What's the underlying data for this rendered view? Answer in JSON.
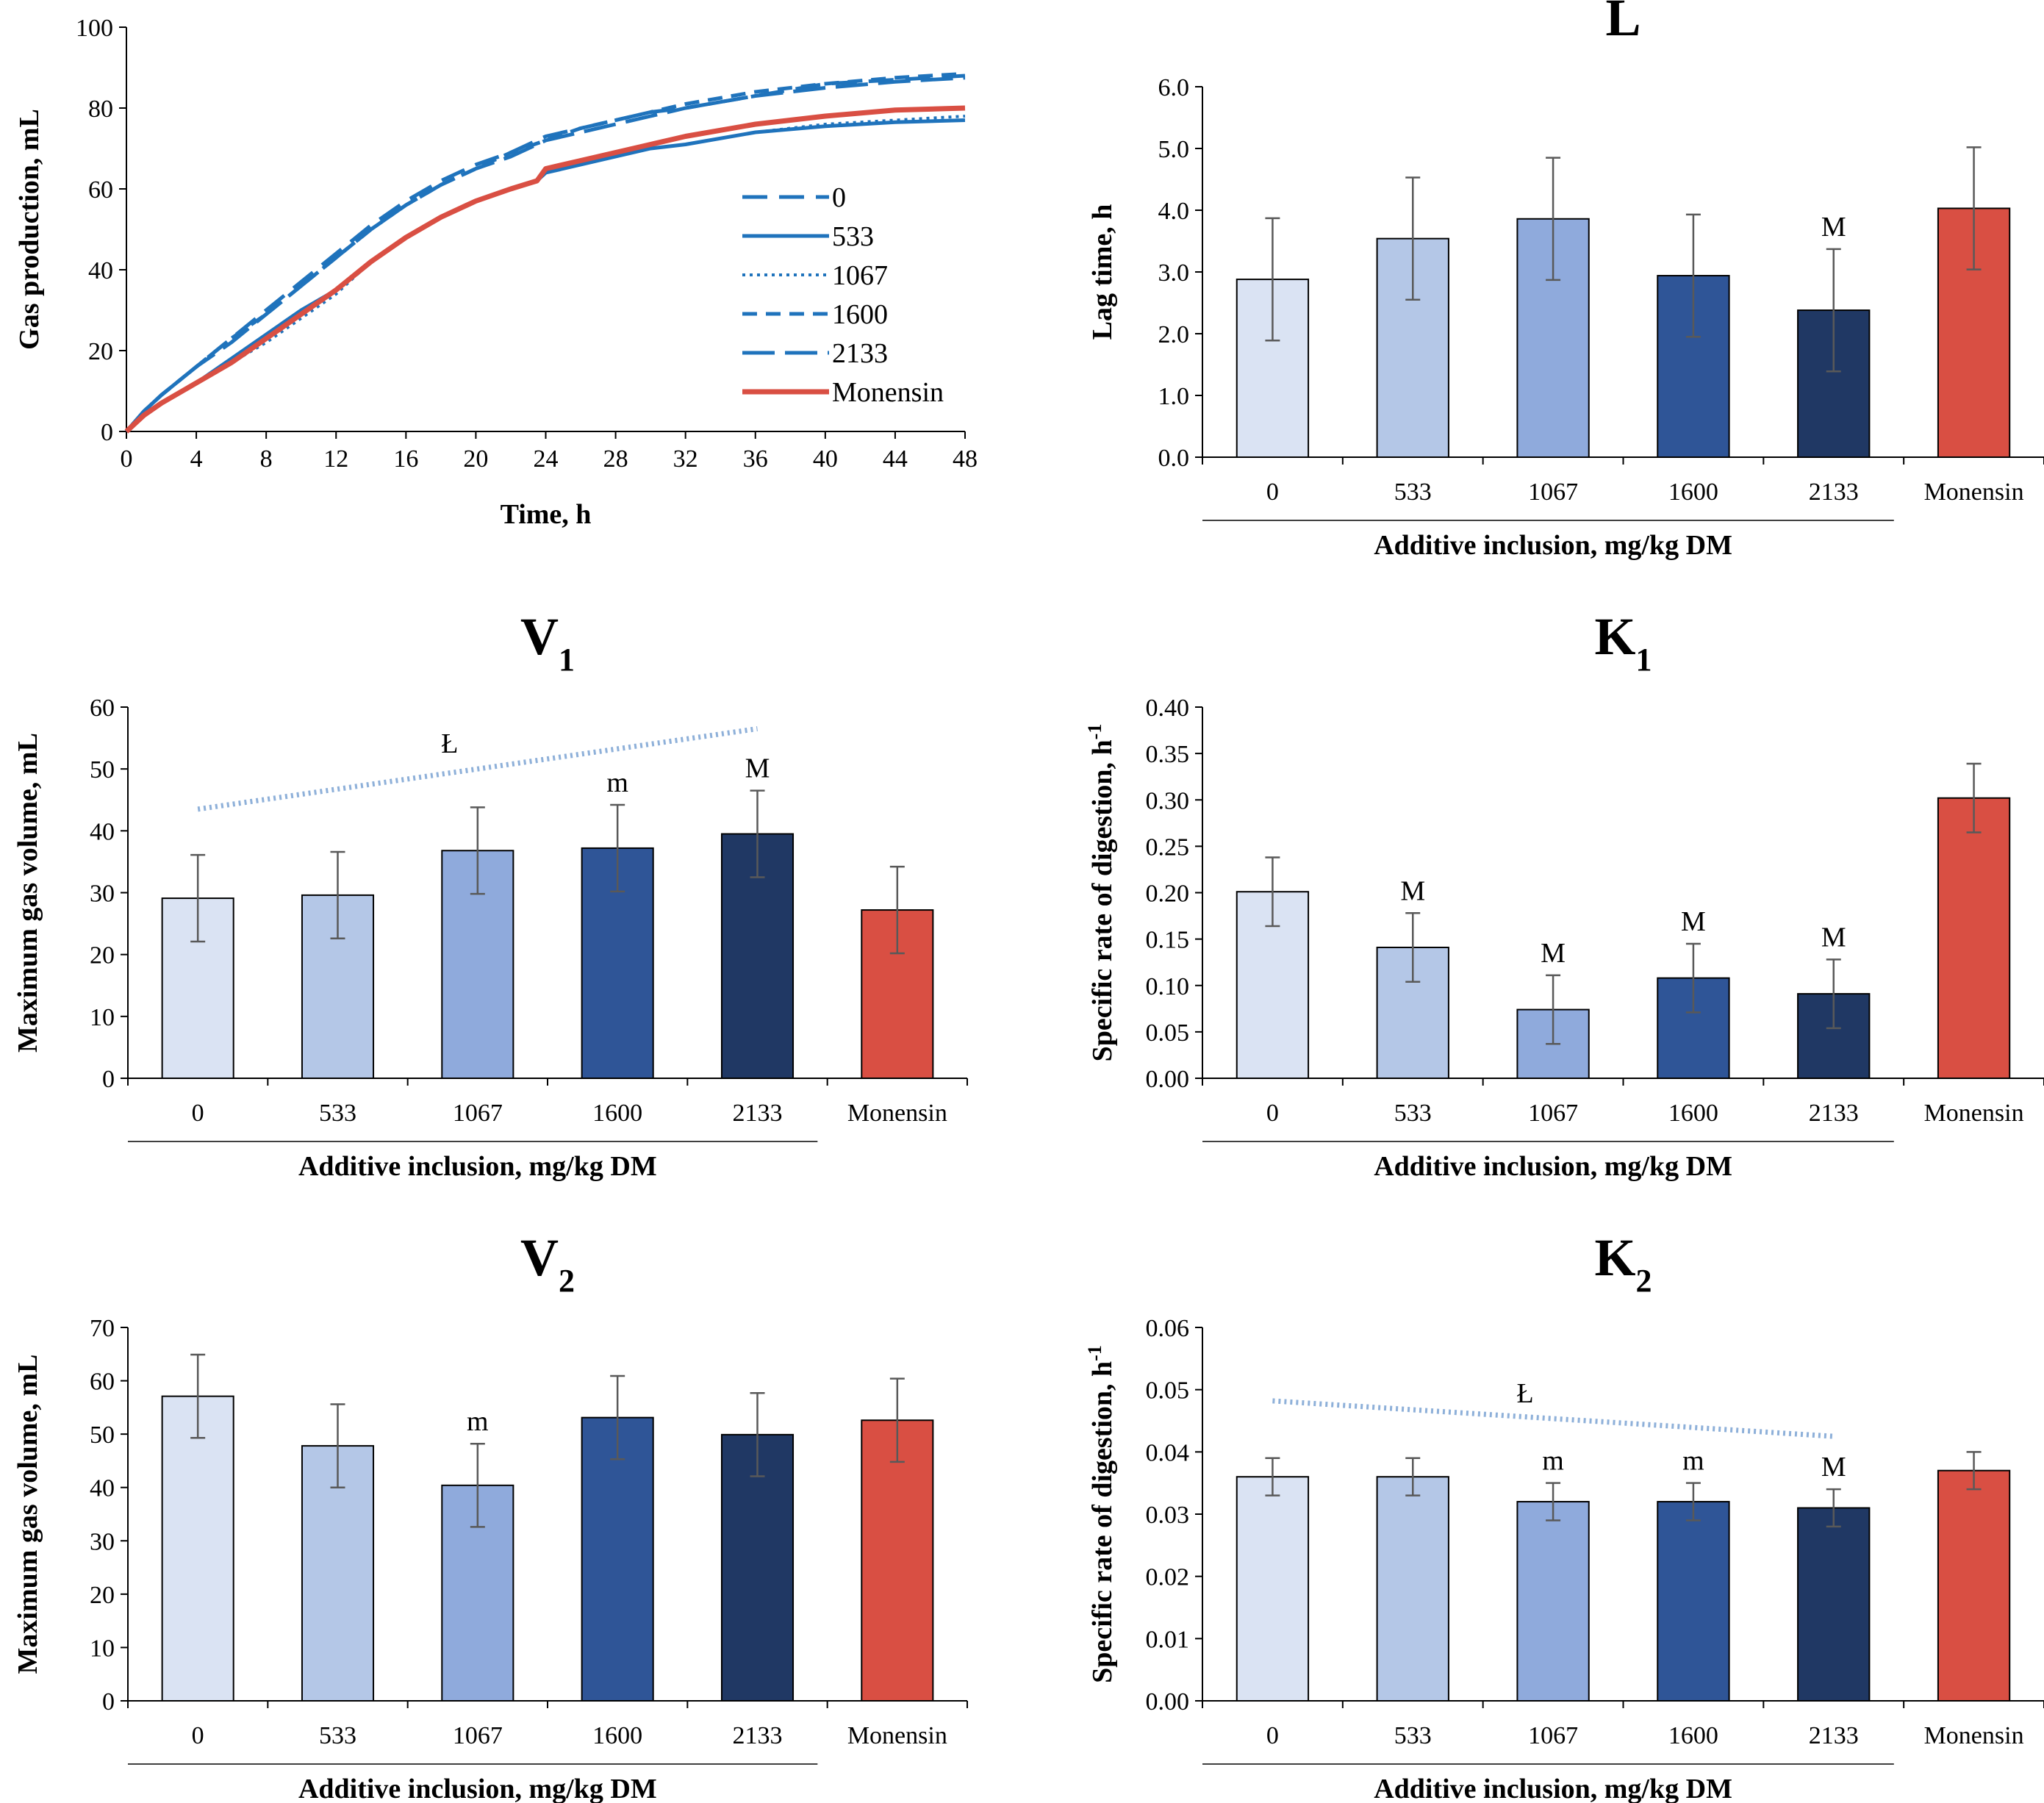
{
  "colors": {
    "c0": "#dae3f3",
    "c533": "#b4c7e7",
    "c1067": "#8faadc",
    "c1600": "#2f5597",
    "c2133": "#203864",
    "monensin": "#d94f43",
    "line_blue": "#1f73bc",
    "trend": "#8eb0d9",
    "err": "#595959"
  },
  "chart_data": [
    {
      "id": "gas",
      "type": "line",
      "title": "",
      "xlabel": "Time, h",
      "ylabel": "Gas production, mL",
      "xlim": [
        0,
        48
      ],
      "ylim": [
        0,
        100
      ],
      "xticks": [
        "0",
        "4",
        "8",
        "12",
        "16",
        "20",
        "24",
        "28",
        "32",
        "36",
        "40",
        "44",
        "48"
      ],
      "yticks": [
        "0",
        "20",
        "40",
        "60",
        "80",
        "100"
      ],
      "legend_position": "center-right",
      "series": [
        {
          "name": "0",
          "style": "longdash",
          "color": "#1f73bc",
          "x": [
            0,
            1,
            2,
            4,
            6,
            8,
            10,
            12,
            14,
            16,
            18,
            20,
            22,
            24,
            26,
            28,
            30,
            32,
            36,
            40,
            44,
            48
          ],
          "y": [
            0,
            5,
            9,
            16,
            23,
            30,
            37,
            44,
            51,
            57,
            62,
            66,
            69,
            73,
            75,
            77,
            79,
            80,
            83,
            86,
            87,
            88
          ]
        },
        {
          "name": "533",
          "style": "solid",
          "color": "#1f73bc",
          "x": [
            0,
            1,
            2,
            4,
            6,
            8,
            10,
            12,
            14,
            16,
            18,
            20,
            22,
            23.5,
            24,
            26,
            28,
            30,
            32,
            36,
            40,
            44,
            48
          ],
          "y": [
            0,
            4,
            7,
            12,
            18,
            24,
            30,
            35,
            42,
            48,
            53,
            57,
            60,
            62,
            64,
            66,
            68,
            70,
            71,
            74,
            75.5,
            76.5,
            77
          ]
        },
        {
          "name": "1067",
          "style": "dotted",
          "color": "#1f73bc",
          "x": [
            0,
            1,
            2,
            4,
            6,
            8,
            10,
            12,
            14,
            16,
            18,
            20,
            22,
            23.5,
            24,
            26,
            28,
            30,
            32,
            36,
            40,
            44,
            48
          ],
          "y": [
            0,
            4,
            7,
            12,
            17,
            22,
            28,
            34,
            42,
            48,
            53,
            57,
            60,
            62,
            64,
            66,
            68,
            70,
            71,
            74,
            76,
            77,
            78
          ]
        },
        {
          "name": "1600",
          "style": "dashed",
          "color": "#1f73bc",
          "x": [
            0,
            1,
            2,
            4,
            6,
            8,
            10,
            12,
            14,
            16,
            18,
            20,
            22,
            24,
            26,
            28,
            30,
            32,
            36,
            40,
            44,
            48
          ],
          "y": [
            0,
            5,
            9,
            16,
            23,
            29,
            36,
            43,
            50,
            56,
            61,
            65,
            69,
            72,
            75,
            77,
            79,
            81,
            84,
            86,
            87.5,
            88.5
          ]
        },
        {
          "name": "2133",
          "style": "longdash2",
          "color": "#1f73bc",
          "x": [
            0,
            1,
            2,
            4,
            6,
            8,
            10,
            12,
            14,
            16,
            18,
            20,
            22,
            24,
            26,
            28,
            30,
            32,
            36,
            40,
            44,
            48
          ],
          "y": [
            0,
            5,
            9,
            16,
            22,
            29,
            36,
            43,
            50,
            56,
            61,
            65,
            68,
            72,
            74,
            76,
            78,
            80,
            83,
            85,
            86.5,
            87.5
          ]
        },
        {
          "name": "Monensin",
          "style": "thick",
          "color": "#d94f43",
          "x": [
            0,
            1,
            2,
            4,
            6,
            8,
            10,
            12,
            14,
            16,
            18,
            20,
            22,
            23.5,
            24,
            26,
            28,
            30,
            32,
            36,
            40,
            44,
            48
          ],
          "y": [
            0,
            4,
            7,
            12,
            17,
            23,
            29,
            35,
            42,
            48,
            53,
            57,
            60,
            62,
            65,
            67,
            69,
            71,
            73,
            76,
            78,
            79.5,
            80
          ]
        }
      ]
    },
    {
      "id": "L",
      "type": "bar",
      "title": "L",
      "title_sub": "",
      "xlabel": "Additive inclusion, mg/kg DM",
      "ylabel": "Lag time, h",
      "ylim": [
        0,
        6
      ],
      "yticks": [
        "0.0",
        "1.0",
        "2.0",
        "3.0",
        "4.0",
        "5.0",
        "6.0"
      ],
      "categories": [
        "0",
        "533",
        "1067",
        "1600",
        "2133",
        "Monensin"
      ],
      "values": [
        2.88,
        3.54,
        3.86,
        2.94,
        2.38,
        4.03
      ],
      "errors": [
        0.99,
        0.99,
        0.99,
        0.99,
        0.99,
        0.99
      ],
      "letters": [
        "",
        "",
        "",
        "",
        "M",
        ""
      ],
      "trend": null
    },
    {
      "id": "V1",
      "type": "bar",
      "title": "V",
      "title_sub": "1",
      "xlabel": "Additive inclusion, mg/kg DM",
      "ylabel": "Maximum gas volume, mL",
      "ylim": [
        0,
        60
      ],
      "yticks": [
        "0",
        "10",
        "20",
        "30",
        "40",
        "50",
        "60"
      ],
      "categories": [
        "0",
        "533",
        "1067",
        "1600",
        "2133",
        "Monensin"
      ],
      "values": [
        29.1,
        29.6,
        36.8,
        37.2,
        39.5,
        27.2
      ],
      "errors": [
        7.0,
        7.0,
        7.0,
        7.0,
        7.0,
        7.0
      ],
      "letters": [
        "",
        "",
        "",
        "m",
        "M",
        ""
      ],
      "trend": {
        "label": "Ł",
        "from": 43.5,
        "to": 56.5
      }
    },
    {
      "id": "K1",
      "type": "bar",
      "title": "K",
      "title_sub": "1",
      "xlabel": "Additive inclusion, mg/kg DM",
      "ylabel": "Specific rate of digestion, h",
      "ylabel_sup": "-1",
      "ylim": [
        0,
        0.4
      ],
      "yticks": [
        "0.00",
        "0.05",
        "0.10",
        "0.15",
        "0.20",
        "0.25",
        "0.30",
        "0.35",
        "0.40"
      ],
      "categories": [
        "0",
        "533",
        "1067",
        "1600",
        "2133",
        "Monensin"
      ],
      "values": [
        0.201,
        0.141,
        0.074,
        0.108,
        0.091,
        0.302
      ],
      "errors": [
        0.037,
        0.037,
        0.037,
        0.037,
        0.037,
        0.037
      ],
      "letters": [
        "",
        "M",
        "M",
        "M",
        "M",
        ""
      ],
      "trend": null
    },
    {
      "id": "V2",
      "type": "bar",
      "title": "V",
      "title_sub": "2",
      "xlabel": "Additive inclusion, mg/kg DM",
      "ylabel": "Maximum gas volume, mL",
      "ylim": [
        0,
        70
      ],
      "yticks": [
        "0",
        "10",
        "20",
        "30",
        "40",
        "50",
        "60",
        "70"
      ],
      "categories": [
        "0",
        "533",
        "1067",
        "1600",
        "2133",
        "Monensin"
      ],
      "values": [
        57.1,
        47.8,
        40.4,
        53.1,
        49.9,
        52.6
      ],
      "errors": [
        7.8,
        7.8,
        7.8,
        7.8,
        7.8,
        7.8
      ],
      "letters": [
        "",
        "",
        "m",
        "",
        "",
        ""
      ],
      "trend": null
    },
    {
      "id": "K2",
      "type": "bar",
      "title": "K",
      "title_sub": "2",
      "xlabel": "Additive inclusion, mg/kg DM",
      "ylabel": "Specific rate of digestion, h",
      "ylabel_sup": "-1",
      "ylim": [
        0,
        0.06
      ],
      "yticks": [
        "0.00",
        "0.01",
        "0.02",
        "0.03",
        "0.04",
        "0.05",
        "0.06"
      ],
      "categories": [
        "0",
        "533",
        "1067",
        "1600",
        "2133",
        "Monensin"
      ],
      "values": [
        0.036,
        0.036,
        0.032,
        0.032,
        0.031,
        0.037
      ],
      "errors": [
        0.003,
        0.003,
        0.003,
        0.003,
        0.003,
        0.003
      ],
      "letters": [
        "",
        "",
        "m",
        "m",
        "M",
        ""
      ],
      "trend": {
        "label": "Ł",
        "from": 0.0482,
        "to": 0.0425
      }
    }
  ]
}
